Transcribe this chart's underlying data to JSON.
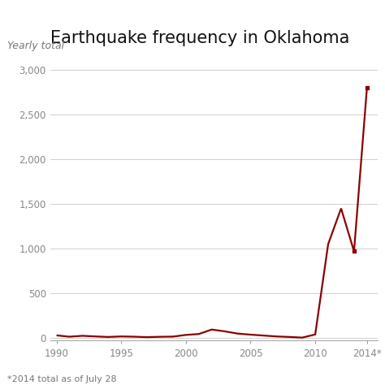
{
  "title": "Earthquake frequency in Oklahoma",
  "subtitle": "Yearly total",
  "footnote": "*2014 total as of July 28",
  "line_color": "#8B0000",
  "background_color": "#ffffff",
  "years": [
    1990,
    1991,
    1992,
    1993,
    1994,
    1995,
    1996,
    1997,
    1998,
    1999,
    2000,
    2001,
    2002,
    2003,
    2004,
    2005,
    2006,
    2007,
    2008,
    2009,
    2010,
    2011,
    2012,
    2013,
    2014
  ],
  "values": [
    30,
    15,
    25,
    18,
    12,
    18,
    15,
    10,
    14,
    16,
    35,
    45,
    95,
    75,
    50,
    38,
    28,
    18,
    12,
    5,
    40,
    1050,
    1450,
    970,
    2800
  ],
  "dot_years": [
    2013,
    2014
  ],
  "dot_values": [
    970,
    2800
  ],
  "xlim": [
    1989.5,
    2014.8
  ],
  "ylim": [
    -30,
    3200
  ],
  "yticks": [
    0,
    500,
    1000,
    1500,
    2000,
    2500,
    3000
  ],
  "ytick_labels": [
    "0",
    "500",
    "1,000",
    "1,500",
    "2,000",
    "2,500",
    "3,000"
  ],
  "xtick_values": [
    1990,
    1995,
    2000,
    2005,
    2010,
    2014
  ],
  "xtick_labels": [
    "1990",
    "1995",
    "2000",
    "2005",
    "2010",
    "2014*"
  ],
  "title_fontsize": 15,
  "subtitle_fontsize": 9,
  "footnote_fontsize": 8,
  "tick_fontsize": 8.5,
  "line_width": 1.6
}
